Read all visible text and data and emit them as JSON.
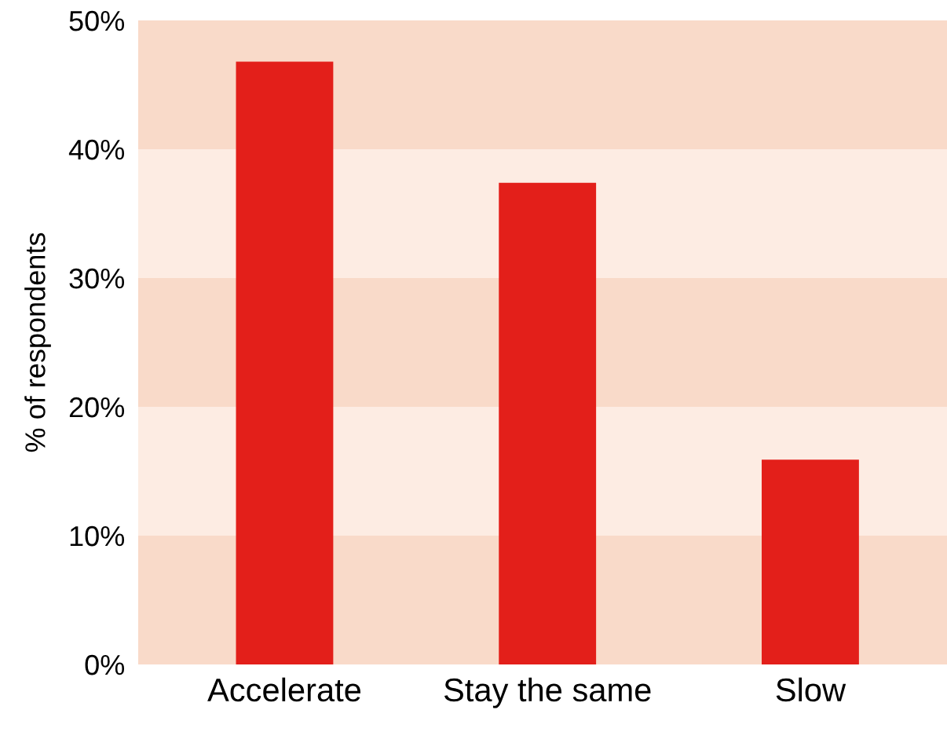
{
  "chart_data": {
    "type": "bar",
    "ylabel": "% of respondents",
    "categories": [
      "Accelerate",
      "Stay the same",
      "Slow"
    ],
    "values": [
      46.8,
      37.4,
      15.9
    ],
    "color": "#e31f1a",
    "ylim": [
      0,
      50
    ],
    "yticks": [
      {
        "value": 0,
        "label": "0%"
      },
      {
        "value": 10,
        "label": "10%"
      },
      {
        "value": 20,
        "label": "20%"
      },
      {
        "value": 30,
        "label": "30%"
      },
      {
        "value": 40,
        "label": "40%"
      },
      {
        "value": 50,
        "label": "50%"
      }
    ],
    "bands": [
      {
        "axis": "y",
        "from": 0,
        "to": 10,
        "color": "#f9dac9"
      },
      {
        "axis": "y",
        "from": 10,
        "to": 20,
        "color": "#fdece3"
      },
      {
        "axis": "y",
        "from": 20,
        "to": 30,
        "color": "#f9dac9"
      },
      {
        "axis": "y",
        "from": 30,
        "to": 40,
        "color": "#fdece3"
      },
      {
        "axis": "y",
        "from": 40,
        "to": 50,
        "color": "#f9dac9"
      }
    ],
    "grid": false,
    "legend": false
  }
}
